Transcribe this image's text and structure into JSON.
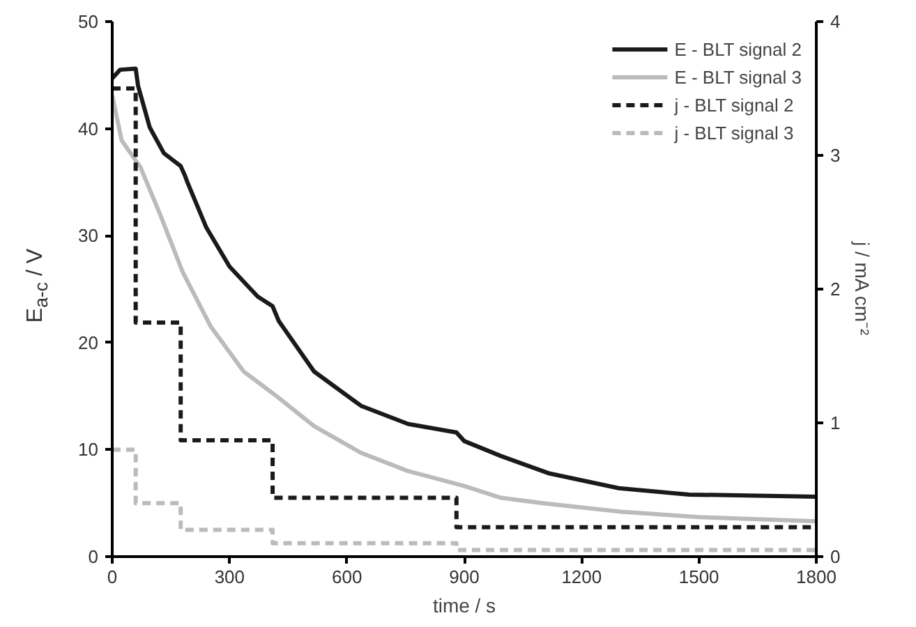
{
  "chart_data": {
    "type": "line",
    "xlabel": "time / s",
    "ylabel": "E$_{a-c}$ / V",
    "y2label": "j / mA cm⁻²",
    "xlim": [
      0,
      1800
    ],
    "xticks": [
      0,
      300,
      600,
      900,
      1200,
      1500,
      1800
    ],
    "ylim": [
      0,
      50
    ],
    "yticks": [
      0,
      10,
      20,
      30,
      40,
      50
    ],
    "y2lim": [
      0,
      4
    ],
    "y2ticks": [
      0,
      1,
      2,
      3,
      4
    ],
    "grid": false,
    "legend": "top right",
    "marker": "none",
    "series": [
      {
        "name": "E - BLT signal 2",
        "color": "#1a1a1a",
        "line_style": "solid",
        "x": [
          0,
          20,
          60,
          66,
          96,
          132,
          175,
          186,
          192,
          240,
          300,
          372,
          410,
          426,
          516,
          636,
          756,
          880,
          900,
          994,
          1115,
          1295,
          1475,
          1800
        ],
        "values": [
          44.7,
          45.5,
          45.6,
          44,
          40.1,
          37.7,
          36.5,
          35.6,
          35.0,
          30.8,
          27.1,
          24.3,
          23.4,
          22.0,
          17.3,
          14.1,
          12.4,
          11.6,
          10.8,
          9.4,
          7.8,
          6.4,
          5.8,
          5.6
        ]
      },
      {
        "name": "E - BLT signal 3",
        "color": "#bbbbbb",
        "line_style": "solid",
        "x": [
          0,
          24,
          72,
          120,
          180,
          252,
          336,
          420,
          516,
          636,
          756,
          900,
          994,
          1100,
          1300,
          1500,
          1800
        ],
        "values": [
          43.1,
          38.9,
          36.4,
          32.2,
          26.6,
          21.5,
          17.3,
          15.0,
          12.2,
          9.7,
          8.0,
          6.6,
          5.5,
          5.0,
          4.2,
          3.7,
          3.3
        ]
      },
      {
        "name": "j - BLT signal 2",
        "type": "step",
        "axis": "y2",
        "color": "#1a1a1a",
        "line_style": "dashed",
        "x": [
          0,
          60,
          175,
          410,
          880,
          1800
        ],
        "values": [
          3.5,
          1.75,
          0.87,
          0.44,
          0.22,
          0.22
        ]
      },
      {
        "name": "j - BLT signal 3",
        "type": "step",
        "axis": "y2",
        "color": "#bbbbbb",
        "line_style": "dashed",
        "x": [
          0,
          60,
          175,
          410,
          880,
          1800
        ],
        "values": [
          0.8,
          0.4,
          0.2,
          0.1,
          0.05,
          0.05
        ]
      }
    ]
  }
}
